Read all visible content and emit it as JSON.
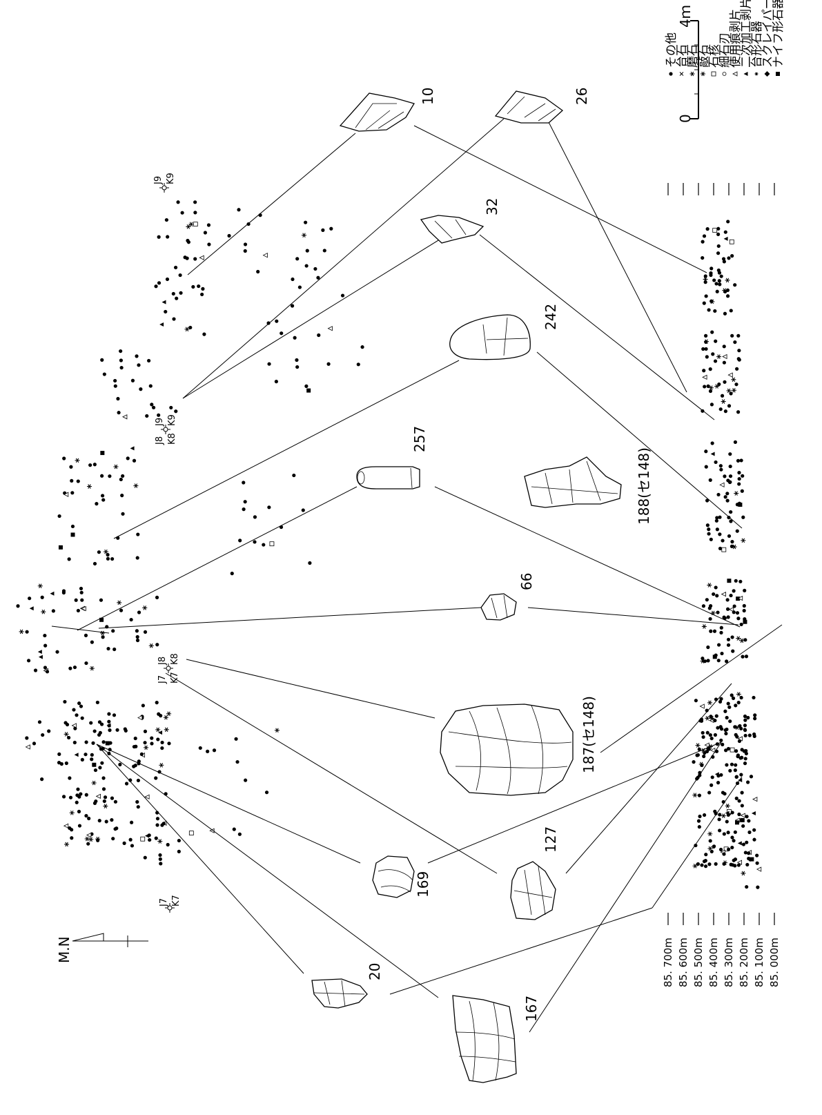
{
  "legend": [
    {
      "symbol": "square",
      "label": "ナイフ形石器"
    },
    {
      "symbol": "diamond",
      "label": "スクレイパー"
    },
    {
      "symbol": "star-small",
      "label": "台形石器"
    },
    {
      "symbol": "triangle",
      "label": "二次加工剥片"
    },
    {
      "symbol": "triangle-open",
      "label": "使用痕剥片"
    },
    {
      "symbol": "circle-open",
      "label": "細石刃"
    },
    {
      "symbol": "square-open",
      "label": "石核"
    },
    {
      "symbol": "star",
      "label": "敲石"
    },
    {
      "symbol": "asterisk",
      "label": "磨石"
    },
    {
      "symbol": "cross",
      "label": "台石"
    },
    {
      "symbol": "dot",
      "label": "その他"
    }
  ],
  "scale": {
    "zero": "0",
    "max": "4ｍ"
  },
  "north": "M.N",
  "grid_points": [
    {
      "label_a": "J9",
      "label_b": "K9"
    },
    {
      "label_a": "J8",
      "label_b": "K8",
      "label_c": "J9",
      "label_d": "K9"
    },
    {
      "label_a": "J7",
      "label_b": "K7",
      "label_c": "J8",
      "label_d": "K8"
    },
    {
      "label_a": "J7",
      "label_b": "K7"
    }
  ],
  "elevations": [
    "85. 700m",
    "85. 600m",
    "85. 500m",
    "85. 400m",
    "85. 300m",
    "85. 200m",
    "85. 100m",
    "85. 000m"
  ],
  "artifacts": [
    {
      "id": "10"
    },
    {
      "id": "26"
    },
    {
      "id": "32"
    },
    {
      "id": "242"
    },
    {
      "id": "257"
    },
    {
      "id": "188(セ148)"
    },
    {
      "id": "66"
    },
    {
      "id": "187(セ148)"
    },
    {
      "id": "169"
    },
    {
      "id": "127"
    },
    {
      "id": "20"
    },
    {
      "id": "167"
    }
  ]
}
